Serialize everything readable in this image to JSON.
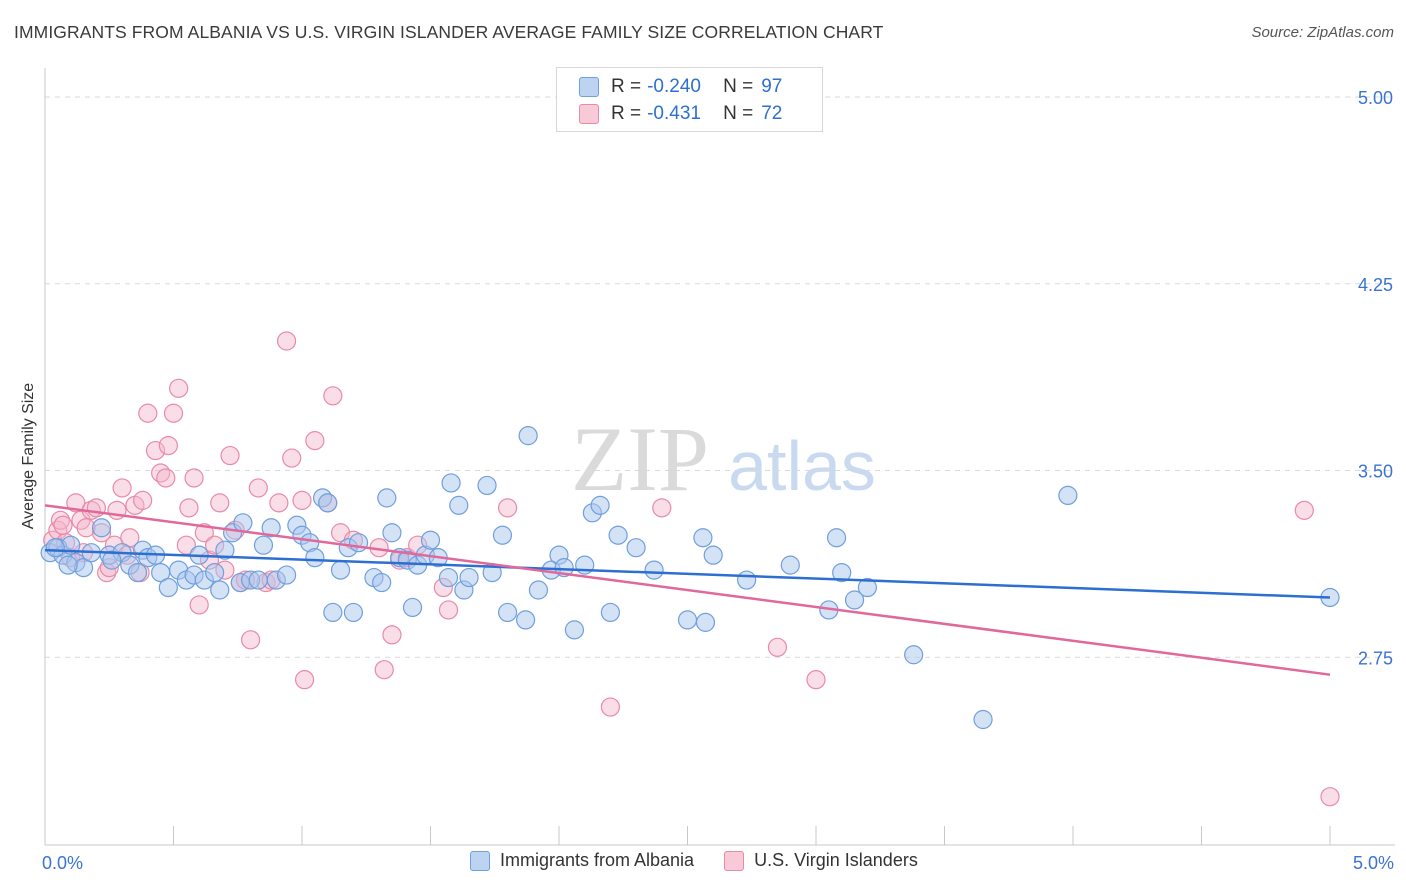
{
  "title": "IMMIGRANTS FROM ALBANIA VS U.S. VIRGIN ISLANDER AVERAGE FAMILY SIZE CORRELATION CHART",
  "source": "Source: ZipAtlas.com",
  "watermark": {
    "part1": "ZIP",
    "part2": "atlas"
  },
  "legend": {
    "rows": [
      {
        "r_label": "R =",
        "r_value": "-0.240",
        "n_label": "N =",
        "n_value": "97"
      },
      {
        "r_label": "R =",
        "r_value": "-0.431",
        "n_label": "N =",
        "n_value": "72"
      }
    ]
  },
  "bottom_legend": {
    "series1": "Immigrants from Albania",
    "series2": "U.S. Virgin Islanders"
  },
  "colors": {
    "blue_fill": "#a9c6ee",
    "blue_stroke": "#6f9fdc",
    "blue_line": "#2d6fd0",
    "pink_fill": "#f4b6c9",
    "pink_stroke": "#e88aa8",
    "pink_line": "#e0689a",
    "tick_label": "#3b74cf",
    "grid": "#d9d9d9"
  },
  "chart_data": {
    "type": "scatter",
    "title": "IMMIGRANTS FROM ALBANIA VS U.S. VIRGIN ISLANDER AVERAGE FAMILY SIZE CORRELATION CHART",
    "xlabel": "",
    "ylabel": "Average Family Size",
    "xlim": [
      0,
      5
    ],
    "ylim": [
      2.0,
      5.1
    ],
    "x_tick_labels": [
      "0.0%",
      "5.0%"
    ],
    "y_ticks": [
      2.75,
      3.5,
      4.25,
      5.0
    ],
    "y_tick_labels": [
      "2.75",
      "3.50",
      "4.25",
      "5.00"
    ],
    "grid": true,
    "legend_position": "top-center",
    "series": [
      {
        "name": "Immigrants from Albania",
        "R": -0.24,
        "N": 97,
        "trend": [
          [
            0,
            3.18
          ],
          [
            5,
            2.99
          ]
        ],
        "points": [
          [
            0.02,
            3.17
          ],
          [
            0.05,
            3.19
          ],
          [
            0.07,
            3.16
          ],
          [
            0.1,
            3.2
          ],
          [
            0.12,
            3.13
          ],
          [
            0.15,
            3.11
          ],
          [
            0.18,
            3.17
          ],
          [
            0.22,
            3.27
          ],
          [
            0.25,
            3.16
          ],
          [
            0.3,
            3.17
          ],
          [
            0.33,
            3.12
          ],
          [
            0.36,
            3.09
          ],
          [
            0.38,
            3.18
          ],
          [
            0.4,
            3.15
          ],
          [
            0.45,
            3.09
          ],
          [
            0.48,
            3.03
          ],
          [
            0.52,
            3.1
          ],
          [
            0.55,
            3.06
          ],
          [
            0.58,
            3.08
          ],
          [
            0.6,
            3.16
          ],
          [
            0.62,
            3.06
          ],
          [
            0.66,
            3.09
          ],
          [
            0.68,
            3.02
          ],
          [
            0.7,
            3.18
          ],
          [
            0.73,
            3.25
          ],
          [
            0.76,
            3.05
          ],
          [
            0.77,
            3.29
          ],
          [
            0.8,
            3.06
          ],
          [
            0.83,
            3.06
          ],
          [
            0.85,
            3.2
          ],
          [
            0.88,
            3.27
          ],
          [
            0.9,
            3.06
          ],
          [
            0.94,
            3.08
          ],
          [
            0.98,
            3.28
          ],
          [
            1.0,
            3.24
          ],
          [
            1.03,
            3.21
          ],
          [
            1.05,
            3.15
          ],
          [
            1.08,
            3.39
          ],
          [
            1.1,
            3.37
          ],
          [
            1.12,
            2.93
          ],
          [
            1.15,
            3.1
          ],
          [
            1.18,
            3.19
          ],
          [
            1.2,
            2.93
          ],
          [
            1.22,
            3.21
          ],
          [
            1.28,
            3.07
          ],
          [
            1.31,
            3.05
          ],
          [
            1.33,
            3.39
          ],
          [
            1.35,
            3.25
          ],
          [
            1.38,
            3.15
          ],
          [
            1.41,
            3.14
          ],
          [
            1.43,
            2.95
          ],
          [
            1.45,
            3.12
          ],
          [
            1.48,
            3.16
          ],
          [
            1.5,
            3.22
          ],
          [
            1.53,
            3.15
          ],
          [
            1.57,
            3.07
          ],
          [
            1.58,
            3.45
          ],
          [
            1.61,
            3.36
          ],
          [
            1.63,
            3.02
          ],
          [
            1.65,
            3.07
          ],
          [
            1.72,
            3.44
          ],
          [
            1.74,
            3.09
          ],
          [
            1.78,
            3.24
          ],
          [
            1.8,
            2.93
          ],
          [
            1.87,
            2.9
          ],
          [
            1.88,
            3.64
          ],
          [
            1.92,
            3.02
          ],
          [
            1.97,
            3.1
          ],
          [
            2.0,
            3.16
          ],
          [
            2.02,
            3.11
          ],
          [
            2.06,
            2.86
          ],
          [
            2.1,
            3.12
          ],
          [
            2.13,
            3.33
          ],
          [
            2.16,
            3.36
          ],
          [
            2.2,
            2.93
          ],
          [
            2.23,
            3.24
          ],
          [
            2.3,
            3.19
          ],
          [
            2.37,
            3.1
          ],
          [
            2.5,
            2.9
          ],
          [
            2.56,
            3.23
          ],
          [
            2.57,
            2.89
          ],
          [
            2.6,
            3.16
          ],
          [
            2.73,
            3.06
          ],
          [
            2.9,
            3.12
          ],
          [
            3.05,
            2.94
          ],
          [
            3.08,
            3.23
          ],
          [
            3.1,
            3.09
          ],
          [
            3.15,
            2.98
          ],
          [
            3.2,
            3.03
          ],
          [
            3.38,
            2.76
          ],
          [
            3.65,
            2.5
          ],
          [
            3.98,
            3.4
          ],
          [
            5.0,
            2.99
          ],
          [
            0.04,
            3.19
          ],
          [
            0.09,
            3.12
          ],
          [
            0.26,
            3.14
          ],
          [
            0.43,
            3.16
          ]
        ]
      },
      {
        "name": "U.S. Virgin Islanders",
        "R": -0.431,
        "N": 72,
        "trend": [
          [
            0,
            3.36
          ],
          [
            5,
            2.68
          ]
        ],
        "points": [
          [
            0.03,
            3.22
          ],
          [
            0.05,
            3.26
          ],
          [
            0.06,
            3.3
          ],
          [
            0.08,
            3.21
          ],
          [
            0.1,
            3.15
          ],
          [
            0.12,
            3.37
          ],
          [
            0.14,
            3.3
          ],
          [
            0.16,
            3.27
          ],
          [
            0.18,
            3.34
          ],
          [
            0.2,
            3.35
          ],
          [
            0.22,
            3.25
          ],
          [
            0.24,
            3.09
          ],
          [
            0.27,
            3.2
          ],
          [
            0.28,
            3.34
          ],
          [
            0.3,
            3.43
          ],
          [
            0.32,
            3.16
          ],
          [
            0.33,
            3.23
          ],
          [
            0.35,
            3.36
          ],
          [
            0.37,
            3.09
          ],
          [
            0.38,
            3.38
          ],
          [
            0.4,
            3.73
          ],
          [
            0.43,
            3.58
          ],
          [
            0.45,
            3.49
          ],
          [
            0.47,
            3.47
          ],
          [
            0.48,
            3.6
          ],
          [
            0.5,
            3.73
          ],
          [
            0.52,
            3.83
          ],
          [
            0.55,
            3.2
          ],
          [
            0.56,
            3.35
          ],
          [
            0.58,
            3.47
          ],
          [
            0.6,
            2.96
          ],
          [
            0.62,
            3.25
          ],
          [
            0.64,
            3.14
          ],
          [
            0.66,
            3.2
          ],
          [
            0.68,
            3.37
          ],
          [
            0.7,
            3.1
          ],
          [
            0.72,
            3.56
          ],
          [
            0.74,
            3.26
          ],
          [
            0.76,
            3.05
          ],
          [
            0.78,
            3.06
          ],
          [
            0.8,
            2.82
          ],
          [
            0.83,
            3.43
          ],
          [
            0.86,
            3.05
          ],
          [
            0.88,
            3.06
          ],
          [
            0.91,
            3.37
          ],
          [
            0.94,
            4.02
          ],
          [
            0.96,
            3.55
          ],
          [
            1.0,
            3.38
          ],
          [
            1.01,
            2.66
          ],
          [
            1.05,
            3.62
          ],
          [
            1.1,
            3.37
          ],
          [
            1.12,
            3.8
          ],
          [
            1.15,
            3.25
          ],
          [
            1.2,
            3.22
          ],
          [
            1.3,
            3.19
          ],
          [
            1.32,
            2.7
          ],
          [
            1.35,
            2.84
          ],
          [
            1.38,
            3.14
          ],
          [
            1.41,
            3.15
          ],
          [
            1.45,
            3.2
          ],
          [
            1.55,
            3.03
          ],
          [
            1.57,
            2.94
          ],
          [
            1.8,
            3.35
          ],
          [
            2.2,
            2.55
          ],
          [
            2.4,
            3.35
          ],
          [
            2.85,
            2.79
          ],
          [
            3.0,
            2.66
          ],
          [
            4.9,
            3.34
          ],
          [
            5.0,
            2.19
          ],
          [
            0.07,
            3.28
          ],
          [
            0.15,
            3.17
          ],
          [
            0.25,
            3.11
          ]
        ]
      }
    ]
  }
}
